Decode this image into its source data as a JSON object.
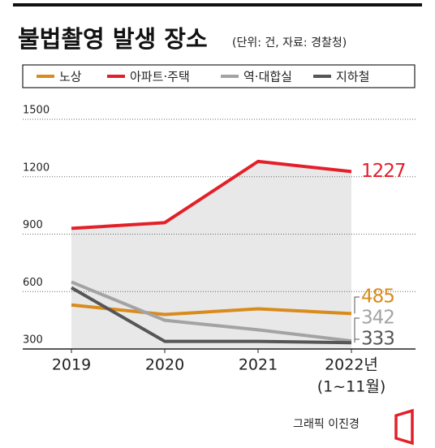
{
  "chart_data": {
    "type": "line",
    "title": "불법촬영 발생 장소",
    "subtitle": "(단위: 건, 자료: 경찰청)",
    "categories": [
      "2019",
      "2020",
      "2021",
      "2022년"
    ],
    "x_note": "(1~11월)",
    "series": [
      {
        "name": "노상",
        "color": "#d98b1c",
        "values": [
          530,
          480,
          510,
          485
        ]
      },
      {
        "name": "아파트·주택",
        "color": "#e3202a",
        "values": [
          930,
          960,
          1280,
          1227
        ]
      },
      {
        "name": "역·대합실",
        "color": "#a3a3a3",
        "values": [
          650,
          450,
          400,
          342
        ]
      },
      {
        "name": "지하철",
        "color": "#565656",
        "values": [
          620,
          340,
          340,
          333
        ]
      }
    ],
    "area_series": 1,
    "area_color": "#e8e8e8",
    "ylim": [
      300,
      1500
    ],
    "yticks": [
      300,
      600,
      900,
      1200,
      1500
    ],
    "grid": true,
    "credit": "그래픽 이진경"
  }
}
